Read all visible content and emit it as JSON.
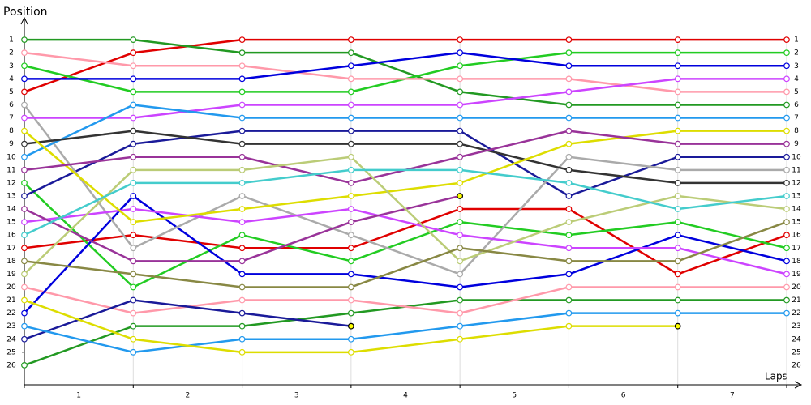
{
  "chart_data": {
    "type": "line",
    "y_label": "Position",
    "x_label": "Laps",
    "x": [
      0,
      1,
      2,
      3,
      4,
      5,
      6,
      7
    ],
    "xlim": [
      0,
      7
    ],
    "xticks": [
      {
        "value": 0.5,
        "label": "1"
      },
      {
        "value": 1.5,
        "label": "2"
      },
      {
        "value": 2.5,
        "label": "3"
      },
      {
        "value": 3.5,
        "label": "4"
      },
      {
        "value": 4.5,
        "label": "5"
      },
      {
        "value": 5.5,
        "label": "6"
      },
      {
        "value": 6.5,
        "label": "7"
      }
    ],
    "ylim": [
      -0.5,
      27.5
    ],
    "y_inverted": true,
    "yticks": [
      1,
      2,
      3,
      4,
      5,
      6,
      7,
      8,
      9,
      10,
      11,
      12,
      13,
      14,
      15,
      16,
      17,
      18,
      19,
      20,
      21,
      22,
      23,
      24,
      25,
      26
    ],
    "marker_fill": "#ffffff",
    "retired_marker_color": "#ffff00",
    "lap_grid": true,
    "series": [
      {
        "color": "#e00000",
        "values": [
          5,
          2,
          1,
          1,
          1,
          1,
          1,
          1
        ]
      },
      {
        "color": "#e00000",
        "values": [
          17,
          16,
          17,
          17,
          14,
          14,
          19,
          16
        ]
      },
      {
        "color": "#229922",
        "values": [
          1,
          1,
          2,
          2,
          5,
          6,
          6,
          6
        ]
      },
      {
        "color": "#229922",
        "values": [
          26,
          23,
          23,
          22,
          21,
          21,
          21,
          21
        ]
      },
      {
        "color": "#22cc22",
        "values": [
          3,
          5,
          5,
          5,
          3,
          2,
          2,
          2
        ]
      },
      {
        "color": "#22cc22",
        "values": [
          12,
          20,
          16,
          18,
          15,
          16,
          15,
          17
        ]
      },
      {
        "color": "#ff99aa",
        "values": [
          2,
          3,
          3,
          4,
          4,
          4,
          5,
          5
        ]
      },
      {
        "color": "#ff99aa",
        "values": [
          20,
          22,
          21,
          21,
          22,
          20,
          20,
          20
        ]
      },
      {
        "color": "#0000dd",
        "values": [
          4,
          4,
          4,
          3,
          2,
          3,
          3,
          3
        ]
      },
      {
        "color": "#0000dd",
        "values": [
          22,
          13,
          19,
          19,
          20,
          19,
          16,
          18
        ]
      },
      {
        "color": "#1a1a99",
        "values": [
          13,
          9,
          8,
          8,
          8,
          13,
          10,
          10
        ]
      },
      {
        "color": "#1a1a99",
        "values": [
          24,
          21,
          22,
          23,
          null,
          null,
          null,
          null
        ]
      },
      {
        "color": "#aaaaaa",
        "values": [
          6,
          17,
          13,
          16,
          19,
          10,
          11,
          11
        ]
      },
      {
        "color": "#cc44ff",
        "values": [
          7,
          7,
          6,
          6,
          6,
          5,
          4,
          4
        ]
      },
      {
        "color": "#cc44ff",
        "values": [
          15,
          14,
          15,
          14,
          16,
          17,
          17,
          19
        ]
      },
      {
        "color": "#2299ee",
        "values": [
          10,
          6,
          7,
          7,
          7,
          7,
          7,
          7
        ]
      },
      {
        "color": "#2299ee",
        "values": [
          23,
          25,
          24,
          24,
          23,
          22,
          22,
          22
        ]
      },
      {
        "color": "#333333",
        "values": [
          9,
          8,
          9,
          9,
          9,
          11,
          12,
          12
        ]
      },
      {
        "color": "#dddd00",
        "values": [
          8,
          15,
          14,
          13,
          12,
          9,
          8,
          8
        ]
      },
      {
        "color": "#dddd00",
        "values": [
          21,
          24,
          25,
          25,
          24,
          23,
          23,
          null
        ]
      },
      {
        "color": "#993399",
        "values": [
          11,
          10,
          10,
          12,
          10,
          8,
          9,
          9
        ]
      },
      {
        "color": "#993399",
        "values": [
          14,
          18,
          18,
          15,
          13,
          null,
          null,
          null
        ]
      },
      {
        "color": "#bbcc77",
        "values": [
          19,
          11,
          11,
          10,
          18,
          15,
          13,
          14
        ]
      },
      {
        "color": "#44cccc",
        "values": [
          16,
          12,
          12,
          11,
          11,
          12,
          14,
          13
        ]
      },
      {
        "color": "#888844",
        "values": [
          18,
          19,
          20,
          20,
          17,
          18,
          18,
          15
        ]
      }
    ]
  }
}
